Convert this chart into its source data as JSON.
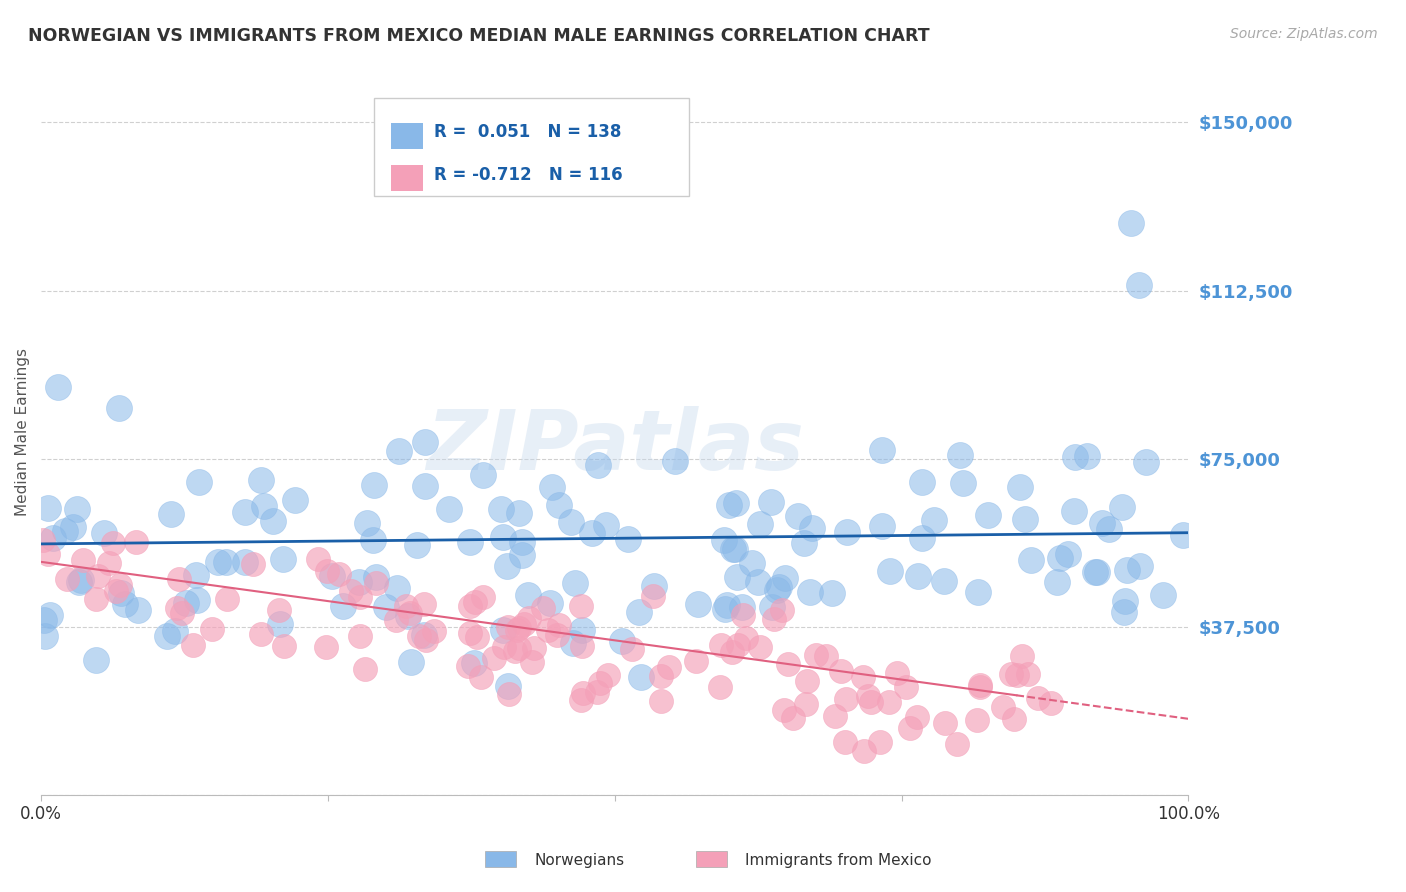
{
  "title": "NORWEGIAN VS IMMIGRANTS FROM MEXICO MEDIAN MALE EARNINGS CORRELATION CHART",
  "source": "Source: ZipAtlas.com",
  "ylabel": "Median Male Earnings",
  "watermark": "ZIPatlas",
  "blue_color": "#89b8e8",
  "pink_color": "#f4a0b8",
  "trendline_blue": "#1a5fa8",
  "trendline_pink": "#e06080",
  "yticks": [
    0,
    37500,
    75000,
    112500,
    150000
  ],
  "xlim": [
    0,
    1.0
  ],
  "ylim": [
    0,
    162000
  ],
  "grid_color": "#d0d0d0",
  "background_color": "#ffffff",
  "title_color": "#333333",
  "source_color": "#aaaaaa",
  "axis_label_color": "#555555",
  "tick_label_color": "#4d94d6",
  "R_norway": 0.051,
  "R_mexico": -0.712,
  "N_norway": 138,
  "N_mexico": 116,
  "norway_seed": 12,
  "mexico_seed": 7,
  "legend_R_nor": "R =  0.051",
  "legend_N_nor": "N = 138",
  "legend_R_mex": "R = -0.712",
  "legend_N_mex": "N = 116",
  "blue_trend_y0": 56000,
  "blue_trend_y1": 58500,
  "pink_trend_y0": 52000,
  "pink_trend_y1": 17000
}
